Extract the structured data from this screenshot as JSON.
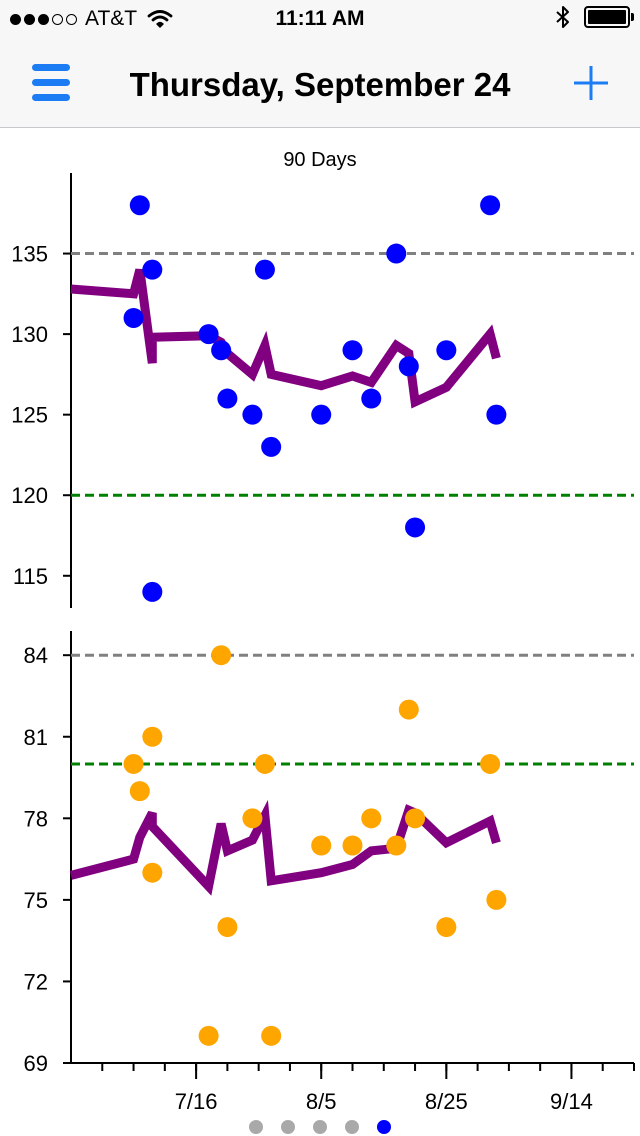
{
  "status_bar": {
    "carrier": "AT&T",
    "time": "11:11 AM",
    "signal_bars_filled": 3,
    "signal_bars_total": 5,
    "battery_level": 1.0
  },
  "nav": {
    "title": "Thursday, September 24",
    "menu_icon": "hamburger-menu-icon",
    "add_icon": "plus-icon"
  },
  "colors": {
    "accent": "#1c7cf4",
    "upper_points": "#0000ff",
    "lower_points": "#ffa500",
    "average_line": "#800080",
    "reference_gray": "#808080",
    "reference_green": "#008000",
    "page_dot": "#a9a9a9",
    "page_dot_active": "#0000ff"
  },
  "pager": {
    "count": 5,
    "active_index": 4
  },
  "chart_data": [
    {
      "type": "scatter",
      "title": "90 Days",
      "xlabel": "",
      "ylabel": "",
      "xlim": [
        "2015-06-26",
        "2015-09-24"
      ],
      "ylim": [
        113,
        140
      ],
      "yticks": [
        115,
        120,
        125,
        130,
        135
      ],
      "reference_lines": [
        {
          "y": 135,
          "color": "#808080",
          "style": "dashed"
        },
        {
          "y": 120,
          "color": "#008000",
          "style": "dashed"
        }
      ],
      "points": [
        {
          "x": "2015-07-06",
          "y": 131
        },
        {
          "x": "2015-07-07",
          "y": 138
        },
        {
          "x": "2015-07-09",
          "y": 114
        },
        {
          "x": "2015-07-09",
          "y": 134
        },
        {
          "x": "2015-07-18",
          "y": 130
        },
        {
          "x": "2015-07-20",
          "y": 129
        },
        {
          "x": "2015-07-21",
          "y": 126
        },
        {
          "x": "2015-07-25",
          "y": 125
        },
        {
          "x": "2015-07-27",
          "y": 134
        },
        {
          "x": "2015-07-28",
          "y": 123
        },
        {
          "x": "2015-08-05",
          "y": 125
        },
        {
          "x": "2015-08-10",
          "y": 129
        },
        {
          "x": "2015-08-13",
          "y": 126
        },
        {
          "x": "2015-08-17",
          "y": 135
        },
        {
          "x": "2015-08-19",
          "y": 128
        },
        {
          "x": "2015-08-20",
          "y": 118
        },
        {
          "x": "2015-08-25",
          "y": 129
        },
        {
          "x": "2015-09-01",
          "y": 138
        },
        {
          "x": "2015-09-02",
          "y": 125
        }
      ],
      "average_line": [
        {
          "x": "2015-06-26",
          "y": 132.8
        },
        {
          "x": "2015-07-06",
          "y": 132.5
        },
        {
          "x": "2015-07-07",
          "y": 134.0
        },
        {
          "x": "2015-07-09",
          "y": 128.2
        },
        {
          "x": "2015-07-09",
          "y": 129.8
        },
        {
          "x": "2015-07-18",
          "y": 129.9
        },
        {
          "x": "2015-07-20",
          "y": 129.5
        },
        {
          "x": "2015-07-21",
          "y": 128.8
        },
        {
          "x": "2015-07-25",
          "y": 127.5
        },
        {
          "x": "2015-07-27",
          "y": 129.3
        },
        {
          "x": "2015-07-28",
          "y": 127.5
        },
        {
          "x": "2015-08-05",
          "y": 126.8
        },
        {
          "x": "2015-08-10",
          "y": 127.4
        },
        {
          "x": "2015-08-13",
          "y": 127.0
        },
        {
          "x": "2015-08-17",
          "y": 129.3
        },
        {
          "x": "2015-08-19",
          "y": 128.8
        },
        {
          "x": "2015-08-20",
          "y": 125.8
        },
        {
          "x": "2015-08-25",
          "y": 126.7
        },
        {
          "x": "2015-09-01",
          "y": 130.0
        },
        {
          "x": "2015-09-02",
          "y": 128.5
        }
      ]
    },
    {
      "type": "scatter",
      "title": "",
      "xlabel": "",
      "ylabel": "",
      "xlim": [
        "2015-06-26",
        "2015-09-24"
      ],
      "ylim": [
        69,
        85
      ],
      "yticks": [
        69,
        72,
        75,
        78,
        81,
        84
      ],
      "xtick_labels": [
        "7/16",
        "8/5",
        "8/25",
        "9/14"
      ],
      "xtick_values": [
        "2015-07-16",
        "2015-08-05",
        "2015-08-25",
        "2015-09-14"
      ],
      "reference_lines": [
        {
          "y": 84,
          "color": "#808080",
          "style": "dashed"
        },
        {
          "y": 80,
          "color": "#008000",
          "style": "dashed"
        }
      ],
      "points": [
        {
          "x": "2015-07-06",
          "y": 80
        },
        {
          "x": "2015-07-07",
          "y": 79
        },
        {
          "x": "2015-07-09",
          "y": 81
        },
        {
          "x": "2015-07-09",
          "y": 76
        },
        {
          "x": "2015-07-18",
          "y": 70
        },
        {
          "x": "2015-07-20",
          "y": 84
        },
        {
          "x": "2015-07-21",
          "y": 74
        },
        {
          "x": "2015-07-25",
          "y": 78
        },
        {
          "x": "2015-07-27",
          "y": 80
        },
        {
          "x": "2015-07-28",
          "y": 70
        },
        {
          "x": "2015-08-05",
          "y": 77
        },
        {
          "x": "2015-08-10",
          "y": 77
        },
        {
          "x": "2015-08-13",
          "y": 78
        },
        {
          "x": "2015-08-17",
          "y": 77
        },
        {
          "x": "2015-08-19",
          "y": 82
        },
        {
          "x": "2015-08-20",
          "y": 78
        },
        {
          "x": "2015-08-25",
          "y": 74
        },
        {
          "x": "2015-09-01",
          "y": 80
        },
        {
          "x": "2015-09-02",
          "y": 75
        }
      ],
      "average_line": [
        {
          "x": "2015-06-26",
          "y": 75.9
        },
        {
          "x": "2015-07-06",
          "y": 76.5
        },
        {
          "x": "2015-07-07",
          "y": 77.3
        },
        {
          "x": "2015-07-09",
          "y": 78.2
        },
        {
          "x": "2015-07-09",
          "y": 77.7
        },
        {
          "x": "2015-07-18",
          "y": 75.5
        },
        {
          "x": "2015-07-20",
          "y": 77.8
        },
        {
          "x": "2015-07-21",
          "y": 76.8
        },
        {
          "x": "2015-07-25",
          "y": 77.2
        },
        {
          "x": "2015-07-27",
          "y": 78.1
        },
        {
          "x": "2015-07-28",
          "y": 75.7
        },
        {
          "x": "2015-08-05",
          "y": 76.0
        },
        {
          "x": "2015-08-10",
          "y": 76.3
        },
        {
          "x": "2015-08-13",
          "y": 76.8
        },
        {
          "x": "2015-08-17",
          "y": 76.9
        },
        {
          "x": "2015-08-19",
          "y": 78.3
        },
        {
          "x": "2015-08-20",
          "y": 78.2
        },
        {
          "x": "2015-08-25",
          "y": 77.1
        },
        {
          "x": "2015-09-01",
          "y": 77.9
        },
        {
          "x": "2015-09-02",
          "y": 77.1
        }
      ]
    }
  ]
}
